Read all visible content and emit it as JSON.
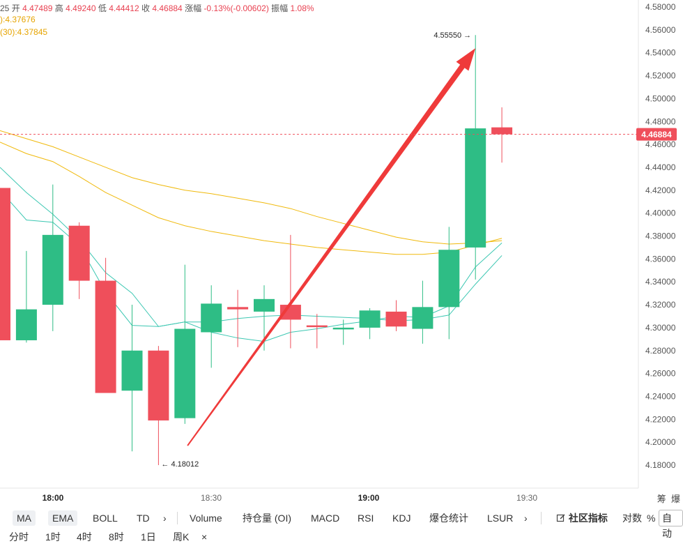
{
  "header": {
    "time_fragment": "25",
    "open_label": "开",
    "open": "4.47489",
    "high_label": "高",
    "high": "4.49240",
    "low_label": "低",
    "low": "4.44412",
    "close_label": "收",
    "close": "4.46884",
    "change_label": "涨幅",
    "change": "-0.13%(-0.00602)",
    "amp_label": "振幅",
    "amp": "1.08%",
    "ma_line1": "):4.37676",
    "ma_line2": "(30):4.37845"
  },
  "chart_data": {
    "type": "candlestick",
    "y_axis": {
      "min": 4.17,
      "max": 4.58,
      "ticks": [
        "4.58000",
        "4.56000",
        "4.54000",
        "4.52000",
        "4.50000",
        "4.48000",
        "4.46000",
        "4.44000",
        "4.42000",
        "4.40000",
        "4.38000",
        "4.36000",
        "4.34000",
        "4.32000",
        "4.30000",
        "4.28000",
        "4.26000",
        "4.24000",
        "4.22000",
        "4.20000",
        "4.18000"
      ]
    },
    "x_axis": {
      "labels": [
        "18:00",
        "18:30",
        "19:00",
        "19:30"
      ]
    },
    "colors": {
      "up": "#2ebd85",
      "down": "#ef4f5b",
      "ma_cyan": "#3cc7b2",
      "ma_yellow": "#f0b90b",
      "arrow": "#ef3a3a"
    },
    "candles": [
      {
        "o": 4.422,
        "c": 4.289,
        "h": 4.422,
        "l": 4.289
      },
      {
        "o": 4.289,
        "c": 4.316,
        "h": 4.367,
        "l": 4.287
      },
      {
        "o": 4.32,
        "c": 4.381,
        "h": 4.425,
        "l": 4.297
      },
      {
        "o": 4.389,
        "c": 4.341,
        "h": 4.392,
        "l": 4.325
      },
      {
        "o": 4.341,
        "c": 4.243,
        "h": 4.361,
        "l": 4.243
      },
      {
        "o": 4.245,
        "c": 4.28,
        "h": 4.32,
        "l": 4.192
      },
      {
        "o": 4.28,
        "c": 4.219,
        "h": 4.284,
        "l": 4.18
      },
      {
        "o": 4.221,
        "c": 4.299,
        "h": 4.355,
        "l": 4.216
      },
      {
        "o": 4.296,
        "c": 4.321,
        "h": 4.337,
        "l": 4.265
      },
      {
        "o": 4.318,
        "c": 4.316,
        "h": 4.333,
        "l": 4.283
      },
      {
        "o": 4.314,
        "c": 4.325,
        "h": 4.337,
        "l": 4.28
      },
      {
        "o": 4.32,
        "c": 4.307,
        "h": 4.381,
        "l": 4.282
      },
      {
        "o": 4.302,
        "c": 4.301,
        "h": 4.312,
        "l": 4.282
      },
      {
        "o": 4.299,
        "c": 4.3,
        "h": 4.307,
        "l": 4.285
      },
      {
        "o": 4.3,
        "c": 4.315,
        "h": 4.317,
        "l": 4.29
      },
      {
        "o": 4.314,
        "c": 4.301,
        "h": 4.324,
        "l": 4.297
      },
      {
        "o": 4.299,
        "c": 4.318,
        "h": 4.341,
        "l": 4.286
      },
      {
        "o": 4.318,
        "c": 4.368,
        "h": 4.388,
        "l": 4.29
      },
      {
        "o": 4.37,
        "c": 4.474,
        "h": 4.5555,
        "l": 4.342
      },
      {
        "o": 4.47489,
        "c": 4.46884,
        "h": 4.4924,
        "l": 4.44412
      }
    ],
    "ma_lines": [
      {
        "color": "#3cc7b2",
        "values": [
          4.42,
          4.394,
          4.392,
          4.372,
          4.331,
          4.302,
          4.301,
          4.305,
          4.296,
          4.291,
          4.288,
          4.296,
          4.299,
          4.303,
          4.306,
          4.31,
          4.309,
          4.319,
          4.353,
          4.374
        ]
      },
      {
        "color": "#3cc7b2",
        "values": [
          4.44,
          4.418,
          4.399,
          4.377,
          4.348,
          4.33,
          4.301,
          4.305,
          4.305,
          4.308,
          4.31,
          4.311,
          4.31,
          4.309,
          4.308,
          4.306,
          4.307,
          4.311,
          4.338,
          4.363
        ]
      },
      {
        "color": "#f0b90b",
        "values": [
          4.462,
          4.452,
          4.445,
          4.432,
          4.418,
          4.407,
          4.396,
          4.389,
          4.384,
          4.38,
          4.376,
          4.373,
          4.37,
          4.368,
          4.366,
          4.364,
          4.364,
          4.366,
          4.372,
          4.378
        ]
      },
      {
        "color": "#f0b90b",
        "values": [
          4.472,
          4.465,
          4.458,
          4.449,
          4.44,
          4.431,
          4.425,
          4.42,
          4.417,
          4.413,
          4.409,
          4.404,
          4.397,
          4.391,
          4.385,
          4.379,
          4.375,
          4.373,
          4.374,
          4.376
        ]
      }
    ],
    "last_price": "4.46884",
    "max_label": "4.55550",
    "min_label": "4.18012",
    "max_value": 4.5555,
    "min_value": 4.18012,
    "arrow_from": {
      "index": 7.1,
      "value": 4.197
    },
    "arrow_to": {
      "index": 18.0,
      "value": 4.544
    }
  },
  "side_labels": {
    "chip": "筹",
    "burst": "爆"
  },
  "toolbar": {
    "ma": "MA",
    "ema": "EMA",
    "boll": "BOLL",
    "td": "TD",
    "more1": "›",
    "volume": "Volume",
    "oi": "持仓量 (OI)",
    "macd": "MACD",
    "rsi": "RSI",
    "kdj": "KDJ",
    "liq": "爆仓统计",
    "lsur": "LSUR",
    "more2": "›",
    "community": "社区指标",
    "log": "对数",
    "percent": "%",
    "auto": "自动"
  },
  "intervals": {
    "items": [
      "分时",
      "1时",
      "4时",
      "8时",
      "1日",
      "周K"
    ],
    "close": "×"
  }
}
